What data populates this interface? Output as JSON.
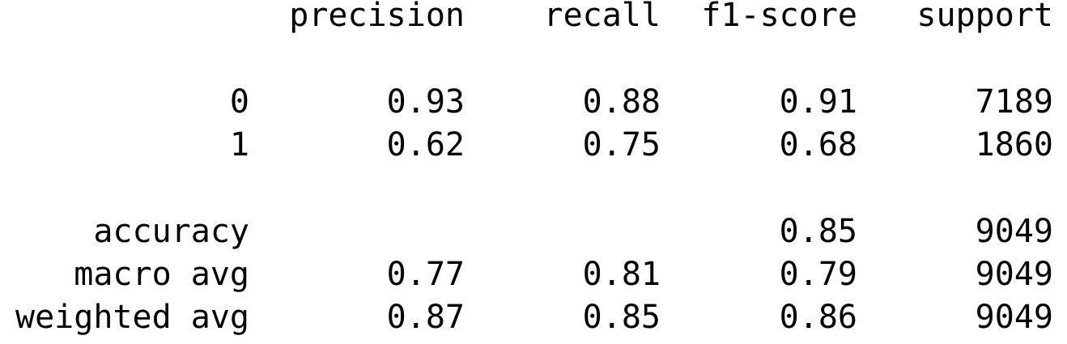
{
  "report": {
    "header": {
      "precision": "precision",
      "recall": "recall",
      "f1": "f1-score",
      "support": "support"
    },
    "classes": [
      {
        "label": "0",
        "precision": "0.93",
        "recall": "0.88",
        "f1": "0.91",
        "support": "7189"
      },
      {
        "label": "1",
        "precision": "0.62",
        "recall": "0.75",
        "f1": "0.68",
        "support": "1860"
      }
    ],
    "accuracy": {
      "label": "accuracy",
      "f1": "0.85",
      "support": "9049"
    },
    "macro_avg": {
      "label": "macro avg",
      "precision": "0.77",
      "recall": "0.81",
      "f1": "0.79",
      "support": "9049"
    },
    "weighted_avg": {
      "label": "weighted avg",
      "precision": "0.87",
      "recall": "0.85",
      "f1": "0.86",
      "support": "9049"
    }
  }
}
